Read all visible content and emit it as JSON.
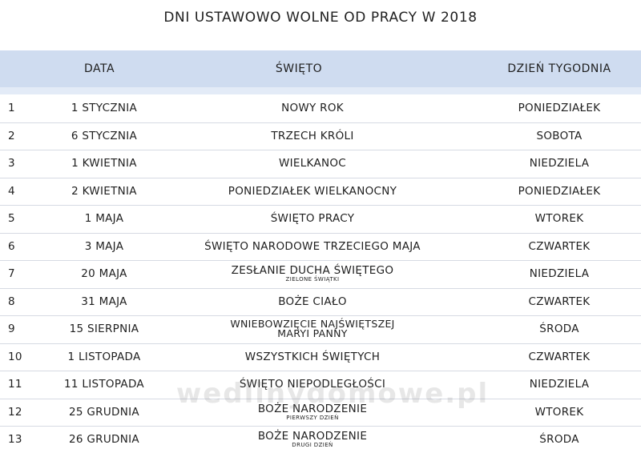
{
  "title": "DNI USTAWOWO WOLNE OD PRACY W 2018",
  "headers": {
    "date": "DATA",
    "holiday": "ŚWIĘTO",
    "day": "DZIEŃ TYGODNIA"
  },
  "rows": [
    {
      "no": "1",
      "date": "1 STYCZNIA",
      "holiday": "NOWY ROK",
      "sub": "",
      "day": "PONIEDZIAŁEK"
    },
    {
      "no": "2",
      "date": "6 STYCZNIA",
      "holiday": "TRZECH KRÓLI",
      "sub": "",
      "day": "SOBOTA"
    },
    {
      "no": "3",
      "date": "1 KWIETNIA",
      "holiday": "WIELKANOC",
      "sub": "",
      "day": "NIEDZIELA"
    },
    {
      "no": "4",
      "date": "2 KWIETNIA",
      "holiday": "PONIEDZIAŁEK WIELKANOCNY",
      "sub": "",
      "day": "PONIEDZIAŁEK"
    },
    {
      "no": "5",
      "date": "1 MAJA",
      "holiday": "ŚWIĘTO PRACY",
      "sub": "",
      "day": "WTOREK"
    },
    {
      "no": "6",
      "date": "3 MAJA",
      "holiday": "ŚWIĘTO NARODOWE TRZECIEGO MAJA",
      "sub": "",
      "day": "CZWARTEK"
    },
    {
      "no": "7",
      "date": "20 MAJA",
      "holiday": "ZESŁANIE DUCHA ŚWIĘTEGO",
      "sub": "ZIELONE ŚWIĄTKI",
      "day": "NIEDZIELA"
    },
    {
      "no": "8",
      "date": "31 MAJA",
      "holiday": "BOŻE CIAŁO",
      "sub": "",
      "day": "CZWARTEK"
    },
    {
      "no": "9",
      "date": "15 SIERPNIA",
      "holiday": "WNIEBOWZIĘCIE NAJŚWIĘTSZEJ MARYI PANNY",
      "sub": "",
      "day": "ŚRODA"
    },
    {
      "no": "10",
      "date": "1 LISTOPADA",
      "holiday": "WSZYSTKICH ŚWIĘTYCH",
      "sub": "",
      "day": "CZWARTEK"
    },
    {
      "no": "11",
      "date": "11 LISTOPADA",
      "holiday": "ŚWIĘTO NIEPODLEGŁOŚCI",
      "sub": "",
      "day": "NIEDZIELA"
    },
    {
      "no": "12",
      "date": "25 GRUDNIA",
      "holiday": "BOŻE NARODZENIE",
      "sub": "PIERWSZY DZIEŃ",
      "day": "WTOREK"
    },
    {
      "no": "13",
      "date": "26 GRUDNIA",
      "holiday": "BOŻE NARODZENIE",
      "sub": "DRUGI DZIEŃ",
      "day": "ŚRODA"
    }
  ],
  "watermark": "wedlinydomowe.pl"
}
